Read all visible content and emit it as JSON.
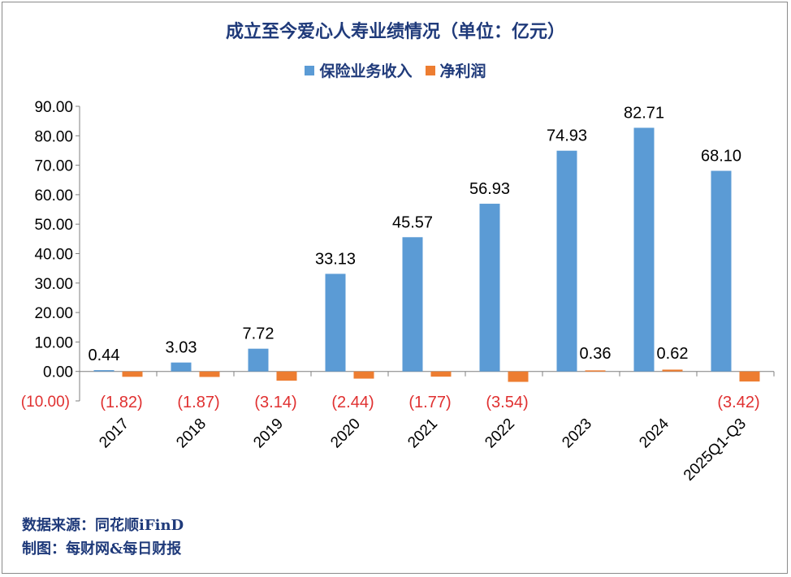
{
  "colors": {
    "revenue": "#5b9bd5",
    "profit": "#ed7d31",
    "negative_label": "#e03030",
    "title": "#1f3a7a"
  },
  "chart_data": {
    "type": "bar",
    "title": "成立至今爱心人寿业绩情况（单位：亿元）",
    "categories": [
      "2017",
      "2018",
      "2019",
      "2020",
      "2021",
      "2022",
      "2023",
      "2024",
      "2025Q1-Q3"
    ],
    "series": [
      {
        "name": "保险业务收入",
        "values": [
          0.44,
          3.03,
          7.72,
          33.13,
          45.57,
          56.93,
          74.93,
          82.71,
          68.1
        ],
        "labels": [
          "0.44",
          "3.03",
          "7.72",
          "33.13",
          "45.57",
          "56.93",
          "74.93",
          "82.71",
          "68.10"
        ]
      },
      {
        "name": "净利润",
        "values": [
          -1.82,
          -1.87,
          -3.14,
          -2.44,
          -1.77,
          -3.54,
          0.36,
          0.62,
          -3.42
        ],
        "labels": [
          "(1.82)",
          "(1.87)",
          "(3.14)",
          "(2.44)",
          "(1.77)",
          "(3.54)",
          "0.36",
          "0.62",
          "(3.42)"
        ]
      }
    ],
    "ylim": [
      -10,
      90
    ],
    "yticks": [
      -10,
      0,
      10,
      20,
      30,
      40,
      50,
      60,
      70,
      80,
      90
    ],
    "ytick_labels": [
      "(10.00)",
      "0.00",
      "10.00",
      "20.00",
      "30.00",
      "40.00",
      "50.00",
      "60.00",
      "70.00",
      "80.00",
      "90.00"
    ],
    "xlabel": "",
    "ylabel": "",
    "legend_position": "top-center"
  },
  "footer": {
    "source": "数据来源：同花顺iFinD",
    "maker": "制图：每财网&每日财报"
  }
}
